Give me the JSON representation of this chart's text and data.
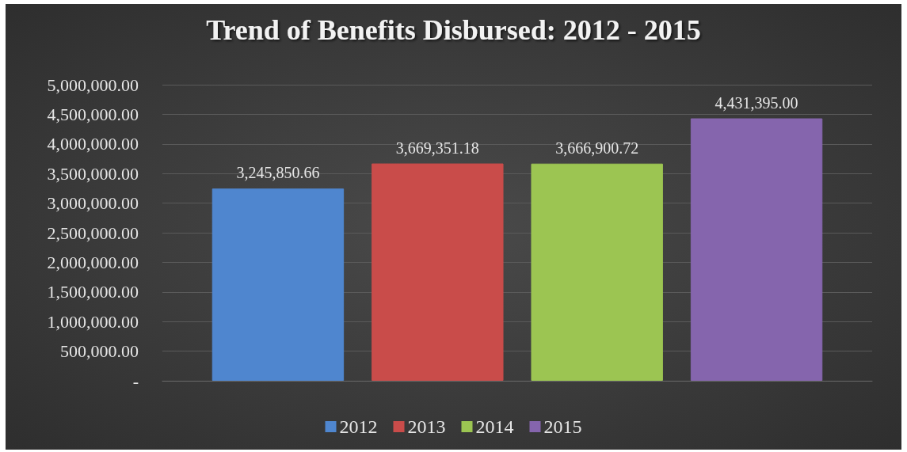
{
  "chart_data": {
    "type": "bar",
    "title": "Trend of Benefits Disbursed: 2012 - 2015",
    "categories": [
      null
    ],
    "series": [
      {
        "name": "2012",
        "color": "#4f86cf",
        "values": [
          3245850.66
        ],
        "value_labels": [
          "3,245,850.66"
        ]
      },
      {
        "name": "2013",
        "color": "#c94c4a",
        "values": [
          3669351.18
        ],
        "value_labels": [
          "3,669,351.18"
        ]
      },
      {
        "name": "2014",
        "color": "#9cc552",
        "values": [
          3666900.72
        ],
        "value_labels": [
          "3,666,900.72"
        ]
      },
      {
        "name": "2015",
        "color": "#8565ad",
        "values": [
          4431395.0
        ],
        "value_labels": [
          "4,431,395.00"
        ]
      }
    ],
    "ylim": [
      0,
      5000000
    ],
    "yticks": [
      {
        "value": 0,
        "label": "-"
      },
      {
        "value": 500000,
        "label": "500,000.00"
      },
      {
        "value": 1000000,
        "label": "1,000,000.00"
      },
      {
        "value": 1500000,
        "label": "1,500,000.00"
      },
      {
        "value": 2000000,
        "label": "2,000,000.00"
      },
      {
        "value": 2500000,
        "label": "2,500,000.00"
      },
      {
        "value": 3000000,
        "label": "3,000,000.00"
      },
      {
        "value": 3500000,
        "label": "3,500,000.00"
      },
      {
        "value": 4000000,
        "label": "4,000,000.00"
      },
      {
        "value": 4500000,
        "label": "4,500,000.00"
      },
      {
        "value": 5000000,
        "label": "5,000,000.00"
      }
    ],
    "grid": "y",
    "legend": "bottom"
  }
}
